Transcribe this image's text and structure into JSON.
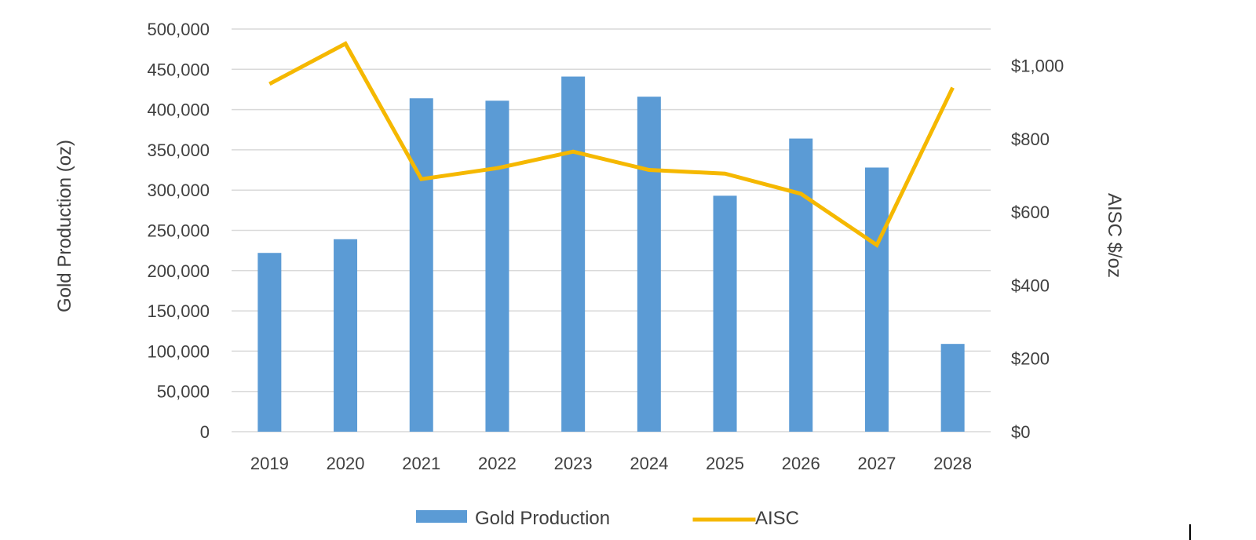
{
  "chart_data": {
    "type": "bar",
    "categories": [
      "2019",
      "2020",
      "2021",
      "2022",
      "2023",
      "2024",
      "2025",
      "2026",
      "2027",
      "2028"
    ],
    "series": [
      {
        "name": "Gold Production",
        "type": "bar",
        "axis": "left",
        "color": "#5b9bd5",
        "values": [
          222000,
          239000,
          414000,
          411000,
          441000,
          416000,
          293000,
          364000,
          328000,
          109000
        ]
      },
      {
        "name": "AISC",
        "type": "line",
        "axis": "right",
        "color": "#f5b800",
        "values": [
          950,
          1060,
          690,
          720,
          765,
          715,
          705,
          650,
          510,
          940
        ]
      }
    ],
    "ylabel": "Gold Production (oz)",
    "y2label": "AISC $/oz",
    "ylim": [
      0,
      500000
    ],
    "y2lim": [
      0,
      1100
    ],
    "yticks": [
      "0",
      "50,000",
      "100,000",
      "150,000",
      "200,000",
      "250,000",
      "300,000",
      "350,000",
      "400,000",
      "450,000",
      "500,000"
    ],
    "y2ticks": [
      "$0",
      "$200",
      "$400",
      "$600",
      "$800",
      "$1,000"
    ],
    "grid": true,
    "legend_position": "bottom"
  }
}
